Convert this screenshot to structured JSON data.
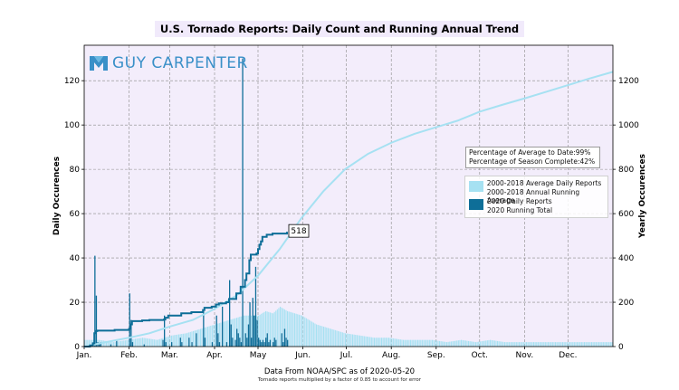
{
  "chart_data": {
    "type": "bar",
    "title": "U.S. Tornado Reports: Daily Count and Running Annual Trend",
    "ylabel_left": "Daily Occurences",
    "ylabel_right": "Yearly Occurences",
    "x_months": [
      "Jan.",
      "Feb.",
      "Mar.",
      "Apr.",
      "May",
      "Jun.",
      "Jul.",
      "Aug.",
      "Sep.",
      "Oct.",
      "Nov.",
      "Dec."
    ],
    "y_left_ticks": [
      "0",
      "20",
      "40",
      "60",
      "80",
      "100",
      "120"
    ],
    "y_right_ticks": [
      "0",
      "200",
      "400",
      "600",
      "800",
      "1000",
      "1200"
    ],
    "ylim_left": [
      0,
      136
    ],
    "ylim_right": [
      0,
      1360
    ],
    "grid": true,
    "legend_position": "right",
    "legend": [
      "2000-2018 Average Daily Reports",
      "2000-2018 Annual Running Average",
      "2020 Daily Reports",
      "2020 Running Total"
    ],
    "stats": {
      "line1": "Percentage of Average to Date:99%",
      "line2": "Percentage of Season Complete:42%"
    },
    "annotation": "518",
    "series": [
      {
        "name": "2000-2018 Annual Running Average",
        "axis": "right",
        "points": [
          [
            0,
            0
          ],
          [
            15,
            20
          ],
          [
            31,
            40
          ],
          [
            45,
            60
          ],
          [
            59,
            90
          ],
          [
            75,
            120
          ],
          [
            90,
            170
          ],
          [
            105,
            230
          ],
          [
            120,
            320
          ],
          [
            135,
            440
          ],
          [
            150,
            580
          ],
          [
            165,
            700
          ],
          [
            180,
            800
          ],
          [
            196,
            870
          ],
          [
            212,
            920
          ],
          [
            228,
            960
          ],
          [
            243,
            990
          ],
          [
            258,
            1020
          ],
          [
            273,
            1060
          ],
          [
            288,
            1090
          ],
          [
            304,
            1120
          ],
          [
            319,
            1150
          ],
          [
            334,
            1180
          ],
          [
            349,
            1210
          ],
          [
            365,
            1240
          ]
        ]
      },
      {
        "name": "2020 Running Total",
        "axis": "right",
        "points": [
          [
            0,
            0
          ],
          [
            4,
            5
          ],
          [
            6,
            15
          ],
          [
            7,
            60
          ],
          [
            8,
            70
          ],
          [
            9,
            72
          ],
          [
            20,
            72
          ],
          [
            21,
            75
          ],
          [
            30,
            75
          ],
          [
            31,
            80
          ],
          [
            32,
            100
          ],
          [
            33,
            115
          ],
          [
            40,
            118
          ],
          [
            45,
            120
          ],
          [
            55,
            122
          ],
          [
            56,
            130
          ],
          [
            58,
            140
          ],
          [
            66,
            140
          ],
          [
            67,
            150
          ],
          [
            74,
            155
          ],
          [
            82,
            165
          ],
          [
            83,
            175
          ],
          [
            88,
            180
          ],
          [
            91,
            190
          ],
          [
            93,
            195
          ],
          [
            98,
            200
          ],
          [
            100,
            215
          ],
          [
            105,
            240
          ],
          [
            108,
            270
          ],
          [
            111,
            300
          ],
          [
            112,
            330
          ],
          [
            114,
            390
          ],
          [
            115,
            415
          ],
          [
            119,
            420
          ],
          [
            120,
            440
          ],
          [
            121,
            460
          ],
          [
            122,
            475
          ],
          [
            123,
            495
          ],
          [
            126,
            505
          ],
          [
            130,
            510
          ],
          [
            140,
            518
          ]
        ]
      },
      {
        "name": "2020 Daily Reports",
        "axis": "left",
        "days": [
          7,
          8,
          9,
          10,
          11,
          18,
          22,
          31,
          32,
          33,
          41,
          54,
          55,
          56,
          60,
          66,
          67,
          72,
          74,
          77,
          82,
          83,
          88,
          91,
          92,
          93,
          95,
          98,
          100,
          101,
          102,
          104,
          105,
          106,
          107,
          108,
          109,
          111,
          112,
          113,
          114,
          115,
          116,
          117,
          118,
          119,
          120,
          121,
          122,
          123,
          124,
          125,
          126,
          127,
          128,
          130,
          131,
          132,
          136,
          137,
          138,
          139,
          140
        ],
        "values": [
          41,
          23,
          2,
          1,
          2,
          1,
          3,
          24,
          12,
          2,
          1,
          3,
          14,
          2,
          2,
          4,
          2,
          4,
          2,
          6,
          16,
          4,
          2,
          14,
          6,
          2,
          18,
          2,
          30,
          10,
          4,
          3,
          8,
          6,
          4,
          2,
          130,
          6,
          4,
          10,
          20,
          4,
          22,
          14,
          36,
          12,
          4,
          3,
          2,
          3,
          2,
          4,
          6,
          2,
          3,
          2,
          4,
          3,
          6,
          2,
          8,
          4,
          3
        ]
      },
      {
        "name": "2000-2018 Average Daily Reports",
        "axis": "left",
        "days": [
          0,
          10,
          20,
          30,
          40,
          50,
          60,
          70,
          80,
          90,
          100,
          110,
          120,
          125,
          130,
          135,
          140,
          150,
          160,
          170,
          180,
          190,
          200,
          210,
          220,
          230,
          240,
          250,
          260,
          270,
          280,
          290,
          300,
          310,
          320,
          330,
          340,
          350,
          360
        ],
        "values": [
          3,
          3,
          2,
          3,
          4,
          3,
          5,
          6,
          8,
          10,
          12,
          14,
          14,
          16,
          15,
          18,
          16,
          14,
          10,
          8,
          6,
          5,
          4,
          4,
          3,
          3,
          3,
          2,
          3,
          2,
          3,
          2,
          2,
          2,
          2,
          2,
          2,
          2,
          2
        ]
      }
    ]
  },
  "logo": {
    "text": "GUY CARPENTER"
  },
  "footer": {
    "source": "Data From NOAA/SPC as of 2020-05-20",
    "note": "Tornado reports multiplied by a factor of 0.85 to account for error"
  },
  "colors": {
    "plot_bg": "#f3edfb",
    "avg_color": "#a6e1f2",
    "actual_color": "#0e6e98",
    "grid_color": "#8a8a8a",
    "logo_color": "#3a90c8"
  }
}
